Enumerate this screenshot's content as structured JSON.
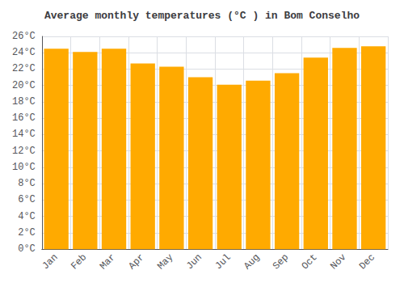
{
  "chart_data": {
    "type": "bar",
    "title": "Average monthly temperatures (°C ) in Bom Conselho",
    "categories": [
      "Jan",
      "Feb",
      "Mar",
      "Apr",
      "May",
      "Jun",
      "Jul",
      "Aug",
      "Sep",
      "Oct",
      "Nov",
      "Dec"
    ],
    "values": [
      24.5,
      24.1,
      24.5,
      22.7,
      22.3,
      21.0,
      20.1,
      20.6,
      21.5,
      23.4,
      24.6,
      24.8
    ],
    "color": "#FFAA00",
    "ylim": [
      0,
      26
    ],
    "yticks": [
      {
        "value": 0,
        "label": "0°C"
      },
      {
        "value": 2,
        "label": "2°C"
      },
      {
        "value": 4,
        "label": "4°C"
      },
      {
        "value": 6,
        "label": "6°C"
      },
      {
        "value": 8,
        "label": "8°C"
      },
      {
        "value": 10,
        "label": "10°C"
      },
      {
        "value": 12,
        "label": "12°C"
      },
      {
        "value": 14,
        "label": "14°C"
      },
      {
        "value": 16,
        "label": "16°C"
      },
      {
        "value": 18,
        "label": "18°C"
      },
      {
        "value": 20,
        "label": "20°C"
      },
      {
        "value": 22,
        "label": "22°C"
      },
      {
        "value": 24,
        "label": "24°C"
      },
      {
        "value": 26,
        "label": "26°C"
      }
    ],
    "grid": true
  }
}
